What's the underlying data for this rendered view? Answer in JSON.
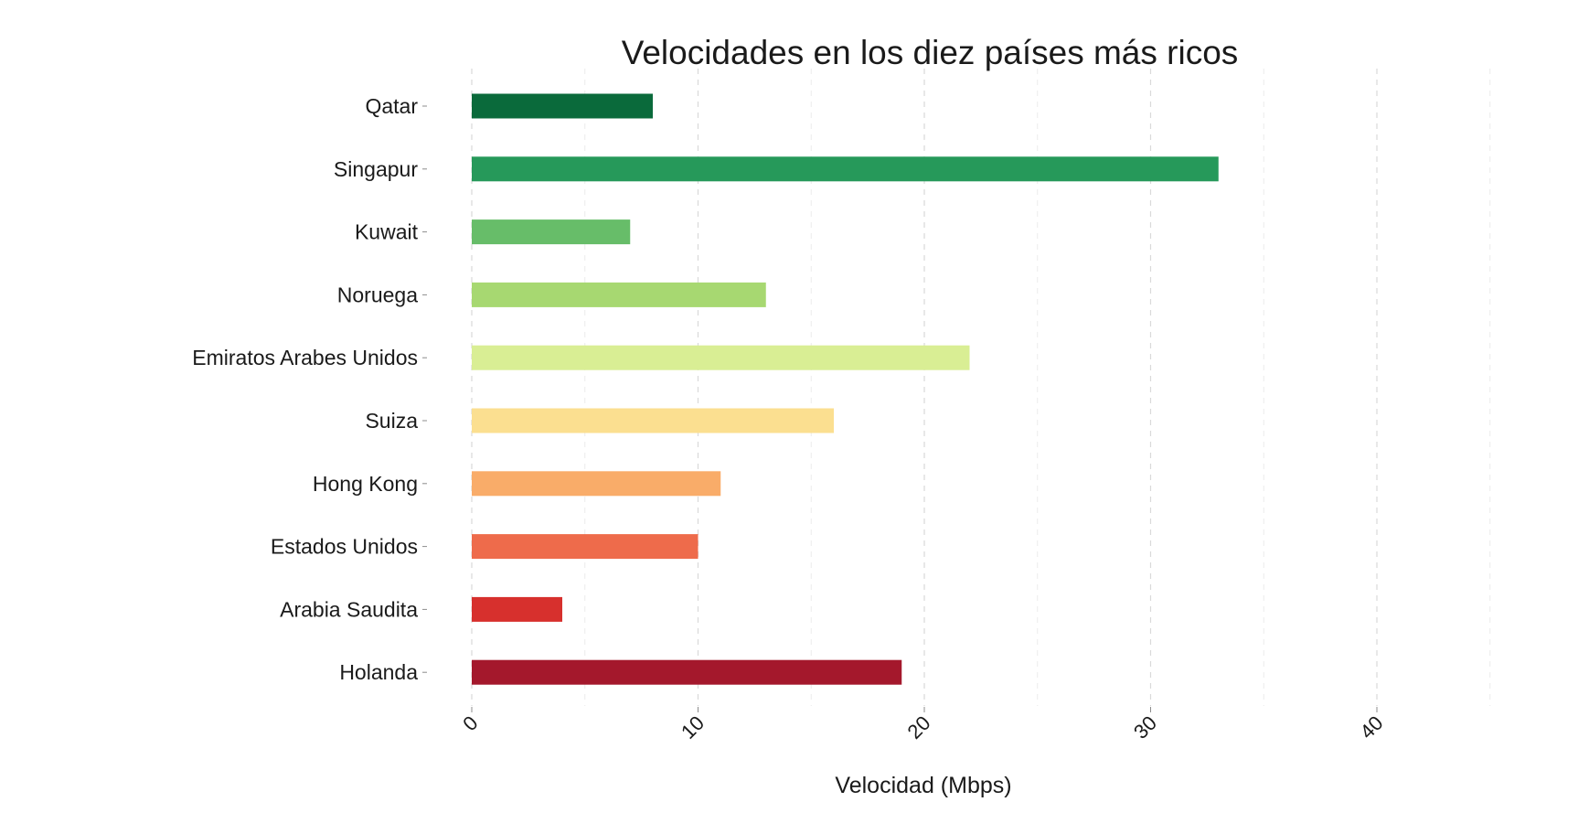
{
  "chart_data": {
    "type": "bar",
    "orientation": "horizontal",
    "title": "Velocidades en los diez países más ricos",
    "xlabel": "Velocidad (Mbps)",
    "ylabel": "",
    "xlim": [
      0,
      45
    ],
    "xticks": [
      0,
      10,
      20,
      30,
      40
    ],
    "xtick_labels": [
      "0",
      "10",
      "20",
      "30",
      "40"
    ],
    "grid": true,
    "legend": "none",
    "categories": [
      "Qatar",
      "Singapur",
      "Kuwait",
      "Noruega",
      "Emiratos Arabes Unidos",
      "Suiza",
      "Hong Kong",
      "Estados Unidos",
      "Arabia Saudita",
      "Holanda"
    ],
    "values": [
      8,
      33,
      7,
      13,
      22,
      16,
      11,
      10,
      4,
      19
    ],
    "colors": [
      "#0a6a3b",
      "#26995a",
      "#67bd69",
      "#a7d871",
      "#d9ee94",
      "#fbdf90",
      "#f9ac69",
      "#ee6b4b",
      "#d7302d",
      "#a4182c"
    ]
  }
}
